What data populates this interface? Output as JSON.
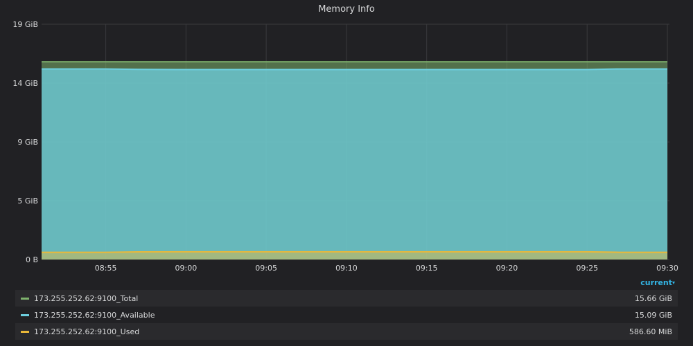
{
  "panel": {
    "title": "Memory Info"
  },
  "legend": {
    "column_header": "current",
    "caret": "▾",
    "items": [
      {
        "name": "173.255.252.62:9100_Total",
        "value": "15.66 GiB",
        "color": "#7eb26d"
      },
      {
        "name": "173.255.252.62:9100_Available",
        "value": "15.09 GiB",
        "color": "#6ed0e0"
      },
      {
        "name": "173.255.252.62:9100_Used",
        "value": "586.60 MiB",
        "color": "#eab839"
      }
    ]
  },
  "chart_data": {
    "type": "area",
    "title": "Memory Info",
    "x": [
      "08:51",
      "08:53",
      "08:55",
      "08:57",
      "09:00",
      "09:05",
      "09:10",
      "09:15",
      "09:20",
      "09:25",
      "09:27",
      "09:30"
    ],
    "x_tick_labels": [
      "08:55",
      "09:00",
      "09:05",
      "09:10",
      "09:15",
      "09:20",
      "09:25",
      "09:30"
    ],
    "y_tick_labels": [
      "0 B",
      "5 GiB",
      "9 GiB",
      "14 GiB",
      "19 GiB"
    ],
    "y_tick_values_gib": [
      0,
      4.66,
      9.31,
      13.97,
      18.63
    ],
    "ylim_gib": [
      0,
      18.63
    ],
    "unit": "GiB",
    "grid": true,
    "legend_position": "bottom",
    "series": [
      {
        "name": "173.255.252.62:9100_Total",
        "color": "#7eb26d",
        "values": [
          15.66,
          15.66,
          15.66,
          15.66,
          15.66,
          15.66,
          15.66,
          15.66,
          15.66,
          15.66,
          15.66,
          15.66
        ]
      },
      {
        "name": "173.255.252.62:9100_Available",
        "color": "#6ed0e0",
        "values": [
          15.09,
          15.09,
          15.09,
          15.05,
          15.04,
          15.04,
          15.04,
          15.04,
          15.04,
          15.04,
          15.09,
          15.09
        ]
      },
      {
        "name": "173.255.252.62:9100_Used",
        "color": "#eab839",
        "values": [
          0.57,
          0.57,
          0.57,
          0.6,
          0.61,
          0.61,
          0.61,
          0.61,
          0.61,
          0.61,
          0.57,
          0.57
        ]
      }
    ]
  }
}
